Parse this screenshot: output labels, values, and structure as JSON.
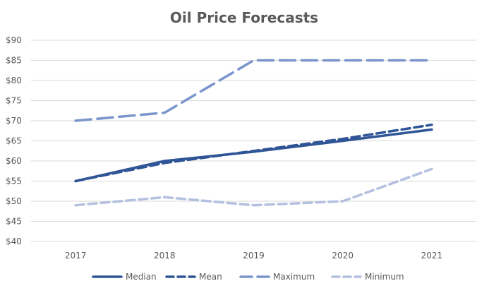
{
  "chart_data": {
    "type": "line",
    "title": "Oil Price Forecasts",
    "xlabel": "",
    "ylabel": "",
    "categories": [
      "2017",
      "2018",
      "2019",
      "2020",
      "2021"
    ],
    "ylim": [
      40,
      90
    ],
    "yticks": [
      40,
      45,
      50,
      55,
      60,
      65,
      70,
      75,
      80,
      85,
      90
    ],
    "ytick_labels": [
      "$40",
      "$45",
      "$50",
      "$55",
      "$60",
      "$65",
      "$70",
      "$75",
      "$80",
      "$85",
      "$90"
    ],
    "grid": true,
    "legend_position": "bottom",
    "series": [
      {
        "name": "Median",
        "values": [
          55,
          60,
          62.3,
          65,
          67.8
        ],
        "color": "#2f5597",
        "dash": "solid"
      },
      {
        "name": "Mean",
        "values": [
          55,
          59.5,
          62.5,
          65.5,
          69
        ],
        "color": "#2f5597",
        "dash": "dash"
      },
      {
        "name": "Maximum",
        "values": [
          70,
          72,
          85,
          85,
          85
        ],
        "color": "#7a95cc",
        "dash": "longdash"
      },
      {
        "name": "Minimum",
        "values": [
          49,
          51,
          49,
          50,
          58
        ],
        "color": "#b4c0e0",
        "dash": "dash"
      }
    ]
  }
}
